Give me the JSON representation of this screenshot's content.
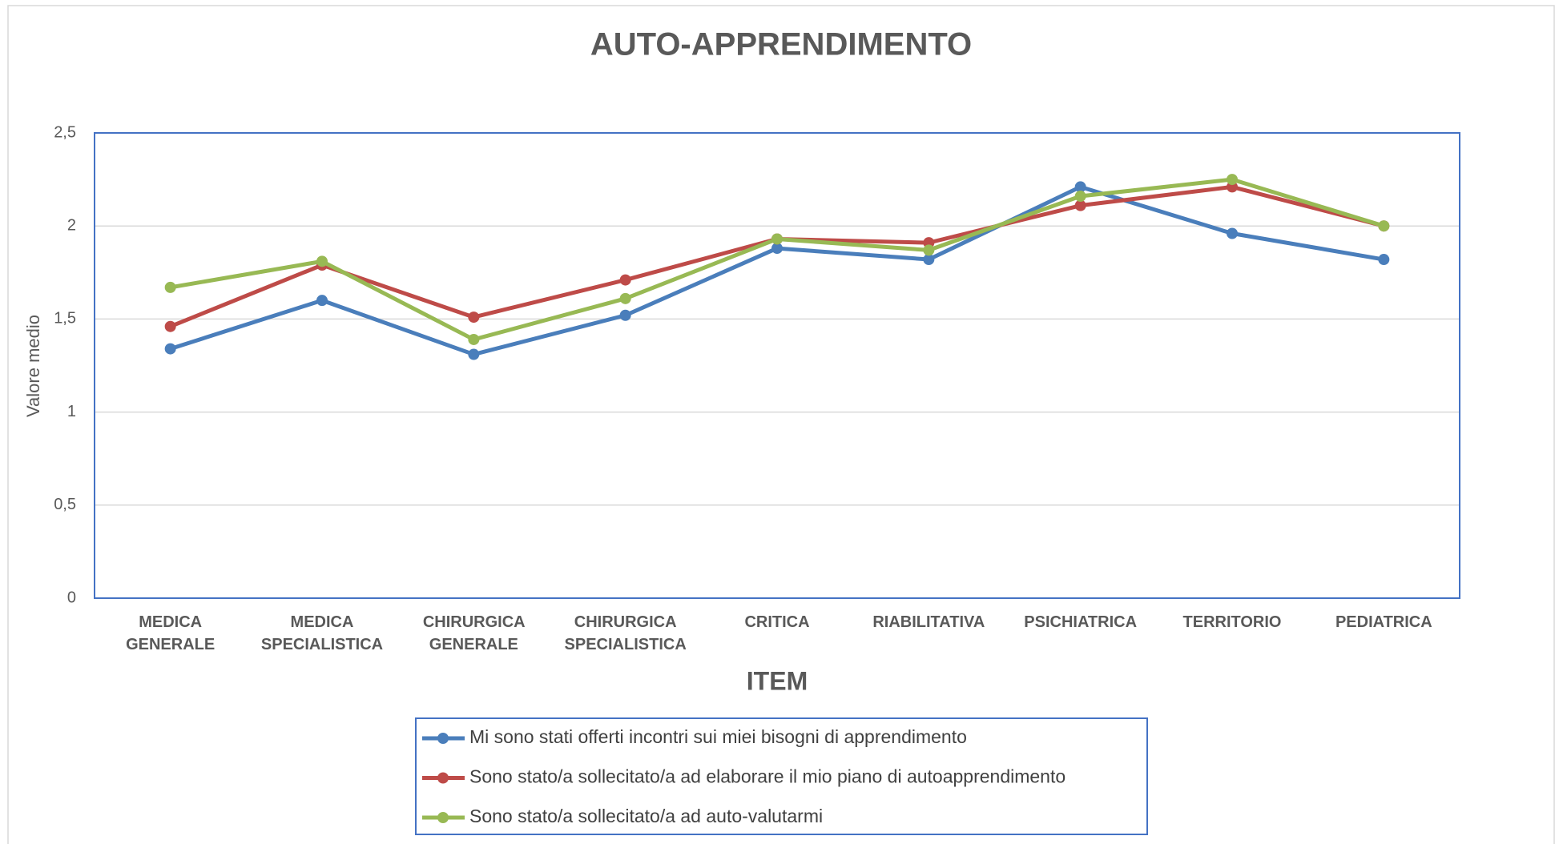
{
  "chart_data": {
    "type": "line",
    "title": "AUTO-APPRENDIMENTO",
    "x_label": "ITEM",
    "y_label": "Valore medio",
    "categories": [
      "MEDICA GENERALE",
      "MEDICA SPECIALISTICA",
      "CHIRURGICA GENERALE",
      "CHIRURGICA SPECIALISTICA",
      "CRITICA",
      "RIABILITATIVA",
      "PSICHIATRICA",
      "TERRITORIO",
      "PEDIATRICA"
    ],
    "series": [
      {
        "name": "Mi sono stati offerti incontri sui miei bisogni di apprendimento",
        "color": "#4a7ebb",
        "values": [
          1.34,
          1.6,
          1.31,
          1.52,
          1.88,
          1.82,
          2.21,
          1.96,
          1.82
        ]
      },
      {
        "name": "Sono stato/a sollecitato/a ad elaborare il mio piano di autoapprendimento",
        "color": "#be4b48",
        "values": [
          1.46,
          1.79,
          1.51,
          1.71,
          1.93,
          1.91,
          2.11,
          2.21,
          2.0
        ]
      },
      {
        "name": "Sono stato/a sollecitato/a ad auto-valutarmi",
        "color": "#98b954",
        "values": [
          1.67,
          1.81,
          1.39,
          1.61,
          1.93,
          1.87,
          2.16,
          2.25,
          2.0
        ]
      }
    ],
    "ylim": [
      0,
      2.5
    ],
    "yticks": [
      0,
      {
        "value": 0.5,
        "label": "0,5"
      },
      1,
      {
        "value": 1.5,
        "label": "1,5"
      },
      2,
      {
        "value": 2.5,
        "label": "2,5"
      }
    ],
    "grid": true,
    "legend": "bottom"
  }
}
